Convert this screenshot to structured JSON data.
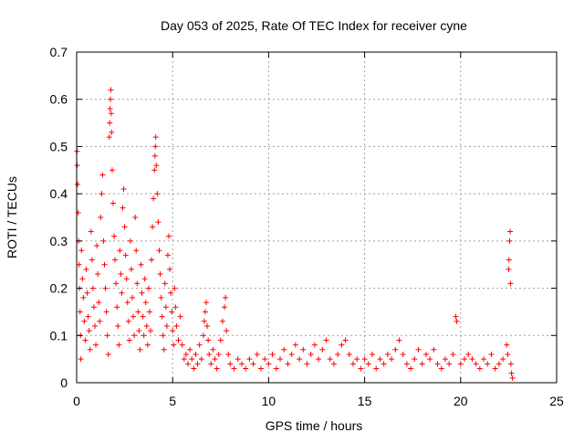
{
  "chart_data": {
    "type": "scatter",
    "title": "Day 053 of 2025, Rate Of TEC Index for receiver cyne",
    "xlabel": "GPS time / hours",
    "ylabel": "ROTI / TECUs",
    "xlim": [
      0,
      25
    ],
    "ylim": [
      0,
      0.7
    ],
    "xticks": [
      0,
      5,
      10,
      15,
      20,
      25
    ],
    "yticks": [
      0,
      0.1,
      0.2,
      0.3,
      0.4,
      0.5,
      0.6,
      0.7
    ],
    "grid": true,
    "legend": "none",
    "marker": "+",
    "color": "#ff0000",
    "series": [
      {
        "points": [
          [
            0.02,
            0.49
          ],
          [
            0.03,
            0.46
          ],
          [
            0.05,
            0.42
          ],
          [
            0.08,
            0.36
          ],
          [
            0.1,
            0.3
          ],
          [
            0.12,
            0.25
          ],
          [
            0.15,
            0.2
          ],
          [
            0.18,
            0.15
          ],
          [
            0.2,
            0.1
          ],
          [
            0.22,
            0.05
          ],
          [
            0.25,
            0.28
          ],
          [
            0.3,
            0.22
          ],
          [
            0.35,
            0.18
          ],
          [
            0.4,
            0.13
          ],
          [
            0.45,
            0.09
          ],
          [
            0.5,
            0.24
          ],
          [
            0.55,
            0.19
          ],
          [
            0.6,
            0.14
          ],
          [
            0.65,
            0.11
          ],
          [
            0.7,
            0.07
          ],
          [
            0.75,
            0.32
          ],
          [
            0.8,
            0.26
          ],
          [
            0.85,
            0.2
          ],
          [
            0.9,
            0.16
          ],
          [
            0.95,
            0.12
          ],
          [
            1.0,
            0.08
          ],
          [
            1.05,
            0.29
          ],
          [
            1.1,
            0.23
          ],
          [
            1.15,
            0.17
          ],
          [
            1.2,
            0.13
          ],
          [
            1.25,
            0.35
          ],
          [
            1.3,
            0.4
          ],
          [
            1.35,
            0.44
          ],
          [
            1.4,
            0.3
          ],
          [
            1.45,
            0.25
          ],
          [
            1.5,
            0.2
          ],
          [
            1.55,
            0.15
          ],
          [
            1.6,
            0.1
          ],
          [
            1.65,
            0.06
          ],
          [
            1.7,
            0.52
          ],
          [
            1.72,
            0.55
          ],
          [
            1.74,
            0.58
          ],
          [
            1.76,
            0.6
          ],
          [
            1.78,
            0.62
          ],
          [
            1.8,
            0.57
          ],
          [
            1.82,
            0.53
          ],
          [
            1.85,
            0.45
          ],
          [
            1.9,
            0.38
          ],
          [
            1.95,
            0.31
          ],
          [
            2.0,
            0.26
          ],
          [
            2.05,
            0.21
          ],
          [
            2.1,
            0.16
          ],
          [
            2.15,
            0.12
          ],
          [
            2.2,
            0.08
          ],
          [
            2.25,
            0.28
          ],
          [
            2.3,
            0.23
          ],
          [
            2.35,
            0.19
          ],
          [
            2.4,
            0.37
          ],
          [
            2.45,
            0.41
          ],
          [
            2.5,
            0.33
          ],
          [
            2.55,
            0.27
          ],
          [
            2.6,
            0.22
          ],
          [
            2.65,
            0.17
          ],
          [
            2.7,
            0.13
          ],
          [
            2.75,
            0.09
          ],
          [
            2.8,
            0.3
          ],
          [
            2.85,
            0.24
          ],
          [
            2.9,
            0.18
          ],
          [
            2.95,
            0.14
          ],
          [
            3.0,
            0.1
          ],
          [
            3.05,
            0.35
          ],
          [
            3.1,
            0.28
          ],
          [
            3.15,
            0.21
          ],
          [
            3.2,
            0.15
          ],
          [
            3.25,
            0.11
          ],
          [
            3.3,
            0.07
          ],
          [
            3.35,
            0.25
          ],
          [
            3.4,
            0.19
          ],
          [
            3.45,
            0.14
          ],
          [
            3.5,
            0.1
          ],
          [
            3.55,
            0.22
          ],
          [
            3.6,
            0.17
          ],
          [
            3.65,
            0.12
          ],
          [
            3.7,
            0.08
          ],
          [
            3.75,
            0.2
          ],
          [
            3.8,
            0.15
          ],
          [
            3.85,
            0.11
          ],
          [
            3.9,
            0.26
          ],
          [
            3.95,
            0.33
          ],
          [
            4.0,
            0.39
          ],
          [
            4.05,
            0.45
          ],
          [
            4.08,
            0.48
          ],
          [
            4.1,
            0.5
          ],
          [
            4.12,
            0.52
          ],
          [
            4.15,
            0.46
          ],
          [
            4.2,
            0.4
          ],
          [
            4.25,
            0.34
          ],
          [
            4.3,
            0.28
          ],
          [
            4.35,
            0.23
          ],
          [
            4.4,
            0.18
          ],
          [
            4.45,
            0.14
          ],
          [
            4.5,
            0.1
          ],
          [
            4.55,
            0.07
          ],
          [
            4.6,
            0.21
          ],
          [
            4.65,
            0.16
          ],
          [
            4.7,
            0.12
          ],
          [
            4.75,
            0.27
          ],
          [
            4.8,
            0.31
          ],
          [
            4.85,
            0.24
          ],
          [
            4.9,
            0.19
          ],
          [
            4.95,
            0.15
          ],
          [
            5.0,
            0.11
          ],
          [
            5.05,
            0.08
          ],
          [
            5.1,
            0.2
          ],
          [
            5.15,
            0.16
          ],
          [
            5.2,
            0.12
          ],
          [
            5.3,
            0.09
          ],
          [
            5.4,
            0.14
          ],
          [
            5.5,
            0.08
          ],
          [
            5.6,
            0.05
          ],
          [
            5.7,
            0.06
          ],
          [
            5.8,
            0.04
          ],
          [
            5.9,
            0.07
          ],
          [
            6.0,
            0.05
          ],
          [
            6.1,
            0.03
          ],
          [
            6.2,
            0.06
          ],
          [
            6.3,
            0.04
          ],
          [
            6.4,
            0.08
          ],
          [
            6.5,
            0.05
          ],
          [
            6.6,
            0.1
          ],
          [
            6.65,
            0.13
          ],
          [
            6.7,
            0.15
          ],
          [
            6.75,
            0.17
          ],
          [
            6.8,
            0.12
          ],
          [
            6.85,
            0.09
          ],
          [
            6.9,
            0.06
          ],
          [
            7.0,
            0.04
          ],
          [
            7.1,
            0.07
          ],
          [
            7.2,
            0.05
          ],
          [
            7.3,
            0.03
          ],
          [
            7.4,
            0.06
          ],
          [
            7.5,
            0.09
          ],
          [
            7.6,
            0.13
          ],
          [
            7.7,
            0.16
          ],
          [
            7.75,
            0.18
          ],
          [
            7.8,
            0.11
          ],
          [
            7.9,
            0.06
          ],
          [
            8.0,
            0.04
          ],
          [
            8.2,
            0.03
          ],
          [
            8.4,
            0.05
          ],
          [
            8.6,
            0.04
          ],
          [
            8.8,
            0.03
          ],
          [
            9.0,
            0.05
          ],
          [
            9.2,
            0.04
          ],
          [
            9.4,
            0.06
          ],
          [
            9.6,
            0.03
          ],
          [
            9.8,
            0.05
          ],
          [
            10.0,
            0.04
          ],
          [
            10.2,
            0.06
          ],
          [
            10.4,
            0.03
          ],
          [
            10.6,
            0.05
          ],
          [
            10.8,
            0.07
          ],
          [
            11.0,
            0.04
          ],
          [
            11.2,
            0.06
          ],
          [
            11.4,
            0.08
          ],
          [
            11.6,
            0.05
          ],
          [
            11.8,
            0.07
          ],
          [
            12.0,
            0.04
          ],
          [
            12.2,
            0.06
          ],
          [
            12.4,
            0.08
          ],
          [
            12.6,
            0.05
          ],
          [
            12.8,
            0.07
          ],
          [
            13.0,
            0.09
          ],
          [
            13.2,
            0.05
          ],
          [
            13.4,
            0.04
          ],
          [
            13.6,
            0.06
          ],
          [
            13.8,
            0.08
          ],
          [
            14.0,
            0.09
          ],
          [
            14.2,
            0.06
          ],
          [
            14.4,
            0.04
          ],
          [
            14.6,
            0.05
          ],
          [
            14.8,
            0.03
          ],
          [
            15.0,
            0.05
          ],
          [
            15.2,
            0.04
          ],
          [
            15.4,
            0.06
          ],
          [
            15.6,
            0.03
          ],
          [
            15.8,
            0.05
          ],
          [
            16.0,
            0.04
          ],
          [
            16.2,
            0.06
          ],
          [
            16.4,
            0.05
          ],
          [
            16.6,
            0.07
          ],
          [
            16.8,
            0.09
          ],
          [
            17.0,
            0.06
          ],
          [
            17.2,
            0.04
          ],
          [
            17.4,
            0.03
          ],
          [
            17.6,
            0.05
          ],
          [
            17.8,
            0.07
          ],
          [
            18.0,
            0.04
          ],
          [
            18.2,
            0.06
          ],
          [
            18.4,
            0.05
          ],
          [
            18.6,
            0.07
          ],
          [
            18.8,
            0.04
          ],
          [
            19.0,
            0.03
          ],
          [
            19.2,
            0.05
          ],
          [
            19.4,
            0.04
          ],
          [
            19.6,
            0.06
          ],
          [
            19.75,
            0.14
          ],
          [
            19.8,
            0.13
          ],
          [
            20.0,
            0.04
          ],
          [
            20.2,
            0.05
          ],
          [
            20.4,
            0.06
          ],
          [
            20.6,
            0.05
          ],
          [
            20.8,
            0.04
          ],
          [
            21.0,
            0.03
          ],
          [
            21.2,
            0.05
          ],
          [
            21.4,
            0.04
          ],
          [
            21.6,
            0.06
          ],
          [
            21.8,
            0.03
          ],
          [
            22.0,
            0.04
          ],
          [
            22.2,
            0.05
          ],
          [
            22.4,
            0.08
          ],
          [
            22.45,
            0.06
          ],
          [
            22.5,
            0.24
          ],
          [
            22.52,
            0.26
          ],
          [
            22.55,
            0.3
          ],
          [
            22.58,
            0.32
          ],
          [
            22.6,
            0.21
          ],
          [
            22.62,
            0.04
          ],
          [
            22.65,
            0.02
          ],
          [
            22.7,
            0.01
          ]
        ]
      }
    ]
  }
}
